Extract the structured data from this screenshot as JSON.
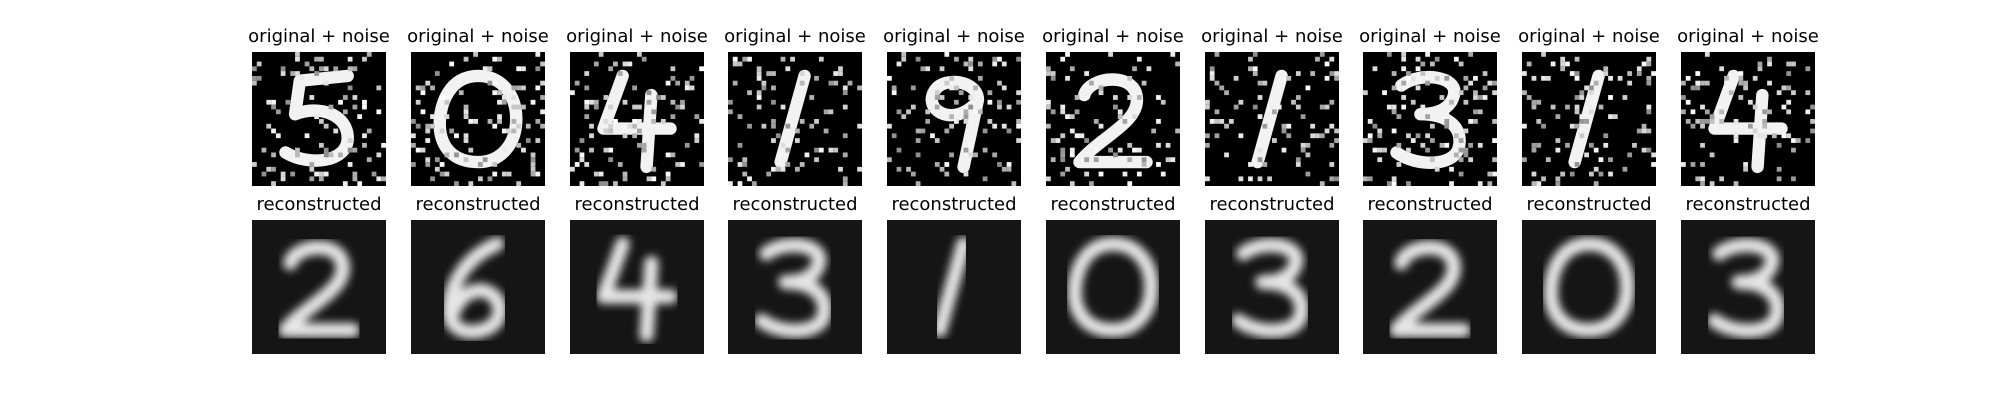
{
  "figure": {
    "noisy_title": "original + noise",
    "recon_title": "reconstructed"
  },
  "chart_data": {
    "type": "image-grid",
    "rows": [
      {
        "name": "original + noise",
        "panels": [
          {
            "title": "original + noise",
            "digit": "5"
          },
          {
            "title": "original + noise",
            "digit": "0"
          },
          {
            "title": "original + noise",
            "digit": "4"
          },
          {
            "title": "original + noise",
            "digit": "1"
          },
          {
            "title": "original + noise",
            "digit": "9"
          },
          {
            "title": "original + noise",
            "digit": "2"
          },
          {
            "title": "original + noise",
            "digit": "1"
          },
          {
            "title": "original + noise",
            "digit": "3"
          },
          {
            "title": "original + noise",
            "digit": "1"
          },
          {
            "title": "original + noise",
            "digit": "4"
          }
        ]
      },
      {
        "name": "reconstructed",
        "panels": [
          {
            "title": "reconstructed",
            "digit": "2"
          },
          {
            "title": "reconstructed",
            "digit": "6"
          },
          {
            "title": "reconstructed",
            "digit": "4"
          },
          {
            "title": "reconstructed",
            "digit": "3"
          },
          {
            "title": "reconstructed",
            "digit": "1"
          },
          {
            "title": "reconstructed",
            "digit": "0"
          },
          {
            "title": "reconstructed",
            "digit": "3"
          },
          {
            "title": "reconstructed",
            "digit": "2"
          },
          {
            "title": "reconstructed",
            "digit": "0"
          },
          {
            "title": "reconstructed",
            "digit": "3"
          }
        ]
      }
    ]
  }
}
